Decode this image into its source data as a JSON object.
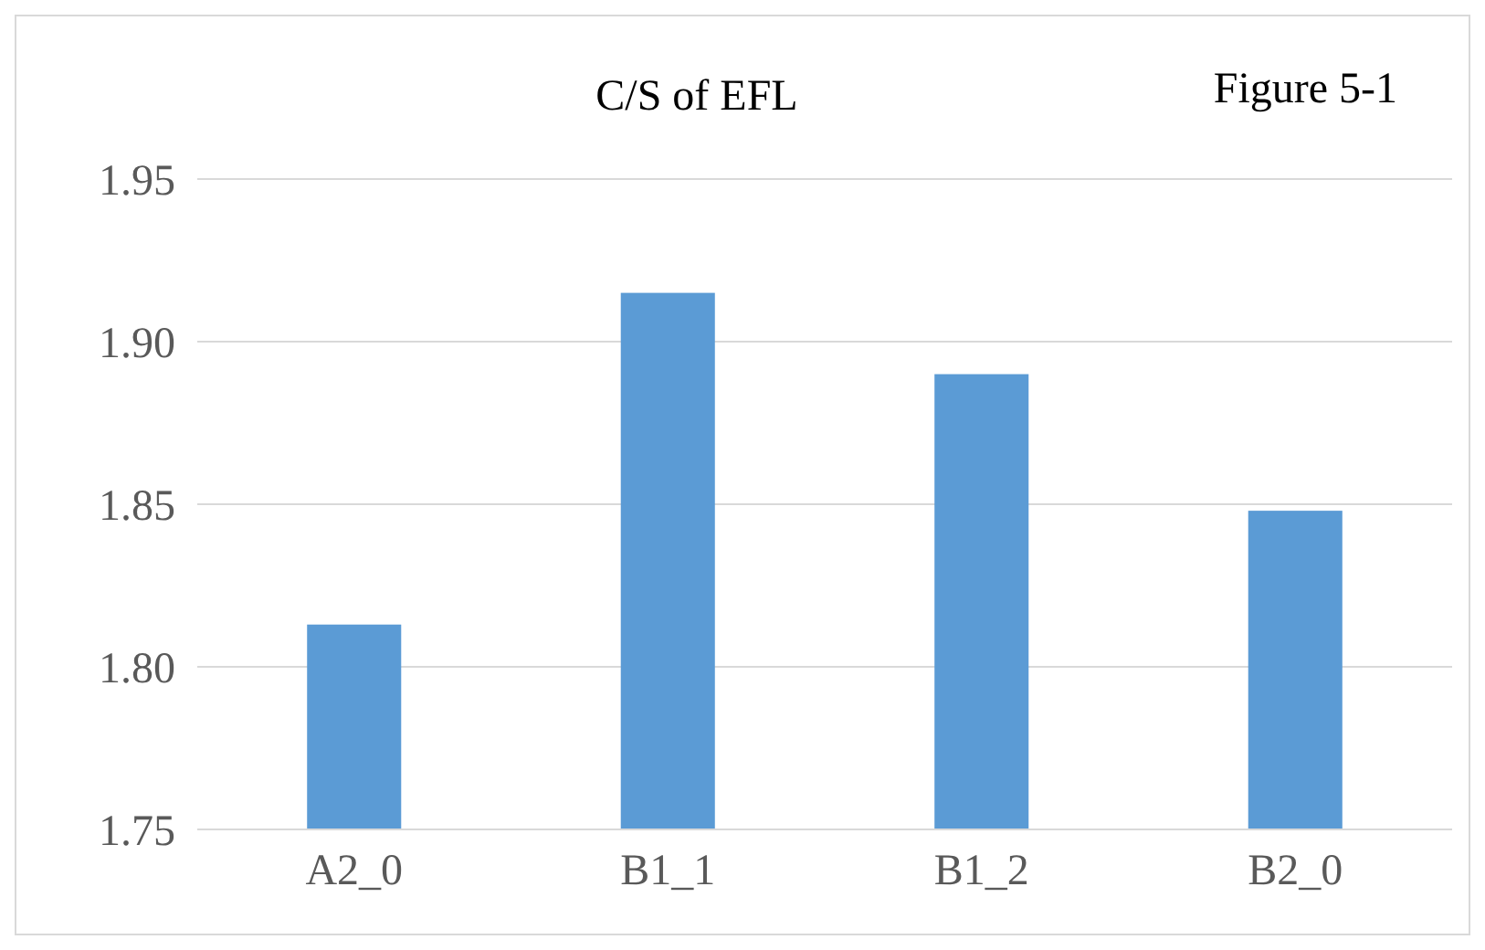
{
  "chart_data": {
    "type": "bar",
    "title": "C/S of EFL",
    "annotations": [
      "Figure 5-1"
    ],
    "categories": [
      "A2_0",
      "B1_1",
      "B1_2",
      "B2_0"
    ],
    "values": [
      1.813,
      1.915,
      1.89,
      1.848
    ],
    "color": "#5b9bd5",
    "ylim": [
      1.75,
      1.95
    ],
    "yticks": [
      {
        "value": 1.75,
        "label": "1.75"
      },
      {
        "value": 1.8,
        "label": "1.80"
      },
      {
        "value": 1.85,
        "label": "1.85"
      },
      {
        "value": 1.9,
        "label": "1.90"
      },
      {
        "value": 1.95,
        "label": "1.95"
      }
    ],
    "grid": true
  }
}
